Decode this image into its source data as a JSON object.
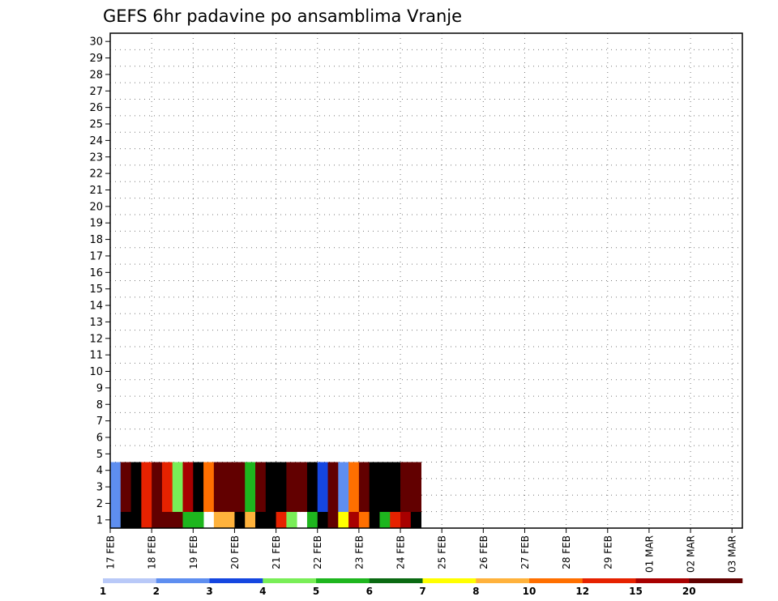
{
  "chart_data": {
    "type": "heatmap",
    "title": "GEFS 6hr padavine po ansamblima Vranje",
    "xlabel": "",
    "ylabel": "",
    "y_categories": [
      "1",
      "2",
      "3",
      "4",
      "5",
      "6",
      "7",
      "8",
      "9",
      "10",
      "11",
      "12",
      "13",
      "14",
      "15",
      "16",
      "17",
      "18",
      "19",
      "20",
      "21",
      "22",
      "23",
      "24",
      "25",
      "26",
      "27",
      "28",
      "29",
      "30"
    ],
    "x_tick_labels": [
      "17 FEB",
      "18 FEB",
      "19 FEB",
      "20 FEB",
      "21 FEB",
      "22 FEB",
      "23 FEB",
      "24 FEB",
      "25 FEB",
      "26 FEB",
      "27 FEB",
      "28 FEB",
      "29 FEB",
      "01 MAR",
      "02 MAR",
      "03 MAR"
    ],
    "x_steps_per_day": 4,
    "x_total_steps": 61,
    "grid": true,
    "legend_position": "bottom",
    "legend": {
      "thresholds": [
        "1",
        "2",
        "3",
        "4",
        "5",
        "6",
        "7",
        "8",
        "10",
        "12",
        "15",
        "20"
      ],
      "colors": [
        "#b9c9f8",
        "#5e8ef0",
        "#1546e0",
        "#79ee57",
        "#1eb61e",
        "#0a6a12",
        "#ffff00",
        "#ffb23c",
        "#ff6f00",
        "#e62200",
        "#a80000",
        "#620000"
      ]
    },
    "cells": [
      [
        1,
        0,
        1,
        3
      ],
      [
        1,
        1,
        15,
        10
      ],
      [
        1,
        2,
        13,
        10
      ],
      [
        1,
        3,
        9,
        10
      ],
      [
        1,
        4,
        11,
        10
      ],
      [
        1,
        5,
        11,
        10
      ],
      [
        1,
        6,
        11,
        10
      ],
      [
        1,
        7,
        4,
        10
      ],
      [
        1,
        8,
        4,
        5
      ],
      [
        1,
        10,
        7,
        8
      ],
      [
        1,
        11,
        7,
        8
      ],
      [
        1,
        12,
        13,
        8
      ],
      [
        1,
        13,
        7,
        7
      ],
      [
        1,
        14,
        13,
        7
      ],
      [
        1,
        15,
        15,
        7
      ],
      [
        1,
        16,
        9,
        7
      ],
      [
        1,
        17,
        3,
        6
      ],
      [
        1,
        19,
        4,
        5
      ],
      [
        1,
        20,
        15,
        5
      ],
      [
        1,
        21,
        11,
        5
      ],
      [
        1,
        22,
        6,
        4
      ],
      [
        1,
        23,
        10,
        4
      ],
      [
        1,
        24,
        8,
        4
      ],
      [
        1,
        25,
        14,
        3
      ],
      [
        1,
        26,
        4,
        3
      ],
      [
        1,
        27,
        9,
        3
      ],
      [
        1,
        28,
        10,
        3
      ],
      [
        1,
        29,
        15,
        3
      ],
      [
        2,
        0,
        1,
        2
      ],
      [
        2,
        1,
        11,
        1
      ],
      [
        2,
        2,
        13,
        1
      ],
      [
        2,
        3,
        9,
        1
      ],
      [
        2,
        4,
        11,
        1
      ],
      [
        2,
        5,
        9,
        1
      ],
      [
        2,
        6,
        3,
        2
      ],
      [
        2,
        7,
        10,
        1
      ],
      [
        2,
        8,
        12,
        1
      ],
      [
        2,
        9,
        8,
        1
      ],
      [
        2,
        10,
        11,
        1
      ],
      [
        2,
        11,
        11,
        1
      ],
      [
        2,
        12,
        11,
        1
      ],
      [
        2,
        13,
        4,
        1
      ],
      [
        2,
        14,
        11,
        1
      ],
      [
        2,
        15,
        15,
        1
      ],
      [
        2,
        16,
        14,
        1
      ],
      [
        2,
        17,
        11,
        1
      ],
      [
        2,
        18,
        11,
        1
      ],
      [
        2,
        19,
        15,
        1
      ],
      [
        2,
        20,
        2,
        1
      ],
      [
        2,
        21,
        11,
        1
      ],
      [
        2,
        22,
        1,
        1
      ],
      [
        2,
        23,
        8,
        1
      ],
      [
        2,
        24,
        11,
        1
      ],
      [
        2,
        25,
        15,
        1
      ],
      [
        2,
        26,
        15,
        1
      ],
      [
        2,
        27,
        15,
        1
      ],
      [
        2,
        28,
        11,
        1
      ],
      [
        2,
        29,
        11,
        1
      ],
      [
        3,
        0,
        1,
        2
      ],
      [
        3,
        1,
        11,
        1
      ],
      [
        3,
        2,
        13,
        1
      ],
      [
        3,
        3,
        9,
        1
      ],
      [
        3,
        4,
        11,
        1
      ],
      [
        3,
        5,
        9,
        1
      ],
      [
        3,
        6,
        3,
        2
      ],
      [
        3,
        7,
        10,
        1
      ],
      [
        3,
        8,
        12,
        1
      ],
      [
        3,
        9,
        8,
        1
      ],
      [
        3,
        10,
        11,
        1
      ],
      [
        3,
        11,
        11,
        1
      ],
      [
        3,
        12,
        11,
        1
      ],
      [
        3,
        13,
        4,
        1
      ],
      [
        3,
        14,
        11,
        1
      ],
      [
        3,
        15,
        15,
        1
      ],
      [
        3,
        16,
        14,
        1
      ],
      [
        3,
        17,
        11,
        1
      ],
      [
        3,
        18,
        11,
        1
      ],
      [
        3,
        19,
        15,
        1
      ],
      [
        3,
        20,
        2,
        1
      ],
      [
        3,
        21,
        11,
        1
      ],
      [
        3,
        22,
        1,
        1
      ],
      [
        3,
        23,
        8,
        1
      ],
      [
        3,
        24,
        11,
        1
      ],
      [
        3,
        25,
        15,
        1
      ],
      [
        3,
        26,
        15,
        1
      ],
      [
        3,
        27,
        15,
        1
      ],
      [
        3,
        28,
        11,
        1
      ],
      [
        3,
        29,
        11,
        1
      ],
      [
        4,
        0,
        1,
        2
      ],
      [
        4,
        1,
        11,
        1
      ],
      [
        4,
        2,
        13,
        1
      ],
      [
        4,
        3,
        9,
        1
      ],
      [
        4,
        4,
        11,
        1
      ],
      [
        4,
        5,
        9,
        1
      ],
      [
        4,
        6,
        3,
        2
      ],
      [
        4,
        7,
        10,
        1
      ],
      [
        4,
        8,
        12,
        1
      ],
      [
        4,
        9,
        8,
        1
      ],
      [
        4,
        10,
        11,
        1
      ],
      [
        4,
        11,
        11,
        1
      ],
      [
        4,
        12,
        11,
        1
      ],
      [
        4,
        13,
        4,
        1
      ],
      [
        4,
        14,
        11,
        1
      ],
      [
        4,
        15,
        15,
        1
      ],
      [
        4,
        16,
        14,
        1
      ],
      [
        4,
        17,
        11,
        1
      ],
      [
        4,
        18,
        11,
        1
      ],
      [
        4,
        19,
        15,
        1
      ],
      [
        4,
        20,
        2,
        1
      ],
      [
        4,
        21,
        11,
        1
      ],
      [
        4,
        22,
        1,
        1
      ],
      [
        4,
        23,
        8,
        1
      ],
      [
        4,
        24,
        11,
        1
      ],
      [
        4,
        25,
        15,
        1
      ],
      [
        4,
        26,
        15,
        1
      ],
      [
        4,
        27,
        15,
        1
      ],
      [
        4,
        28,
        11,
        1
      ],
      [
        4,
        29,
        11,
        1
      ]
    ]
  }
}
